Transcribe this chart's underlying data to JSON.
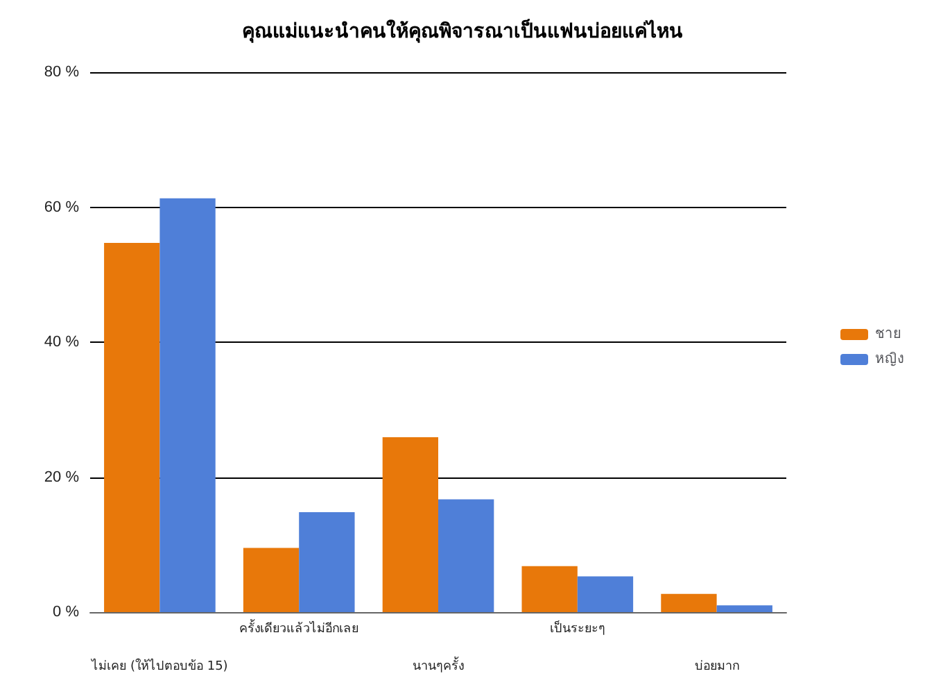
{
  "chart_data": {
    "type": "bar",
    "title": "คุณแม่แนะนำคนให้คุณพิจารณาเป็นแฟนบ่อยแค่ไหน",
    "categories": [
      "ไม่เคย (ให้ไปตอบข้อ 15)",
      "ครั้งเดียวแล้วไม่อีกเลย",
      "นานๆครั้ง",
      "เป็นระยะๆ",
      "บ่อยมาก"
    ],
    "series": [
      {
        "name": "ชาย",
        "color": "#e8780a",
        "values": [
          54.7,
          9.5,
          25.9,
          6.8,
          2.7
        ]
      },
      {
        "name": "หญิง",
        "color": "#4f7fd8",
        "values": [
          61.3,
          14.8,
          16.7,
          5.3,
          1.0
        ]
      }
    ],
    "ylim": [
      0,
      80
    ],
    "yticks": [
      {
        "value": 0,
        "label": "0 %"
      },
      {
        "value": 20,
        "label": "20 %"
      },
      {
        "value": 40,
        "label": "40 %"
      },
      {
        "value": 60,
        "label": "60 %"
      },
      {
        "value": 80,
        "label": "80 %"
      }
    ],
    "grid": "y",
    "legend": "right"
  }
}
